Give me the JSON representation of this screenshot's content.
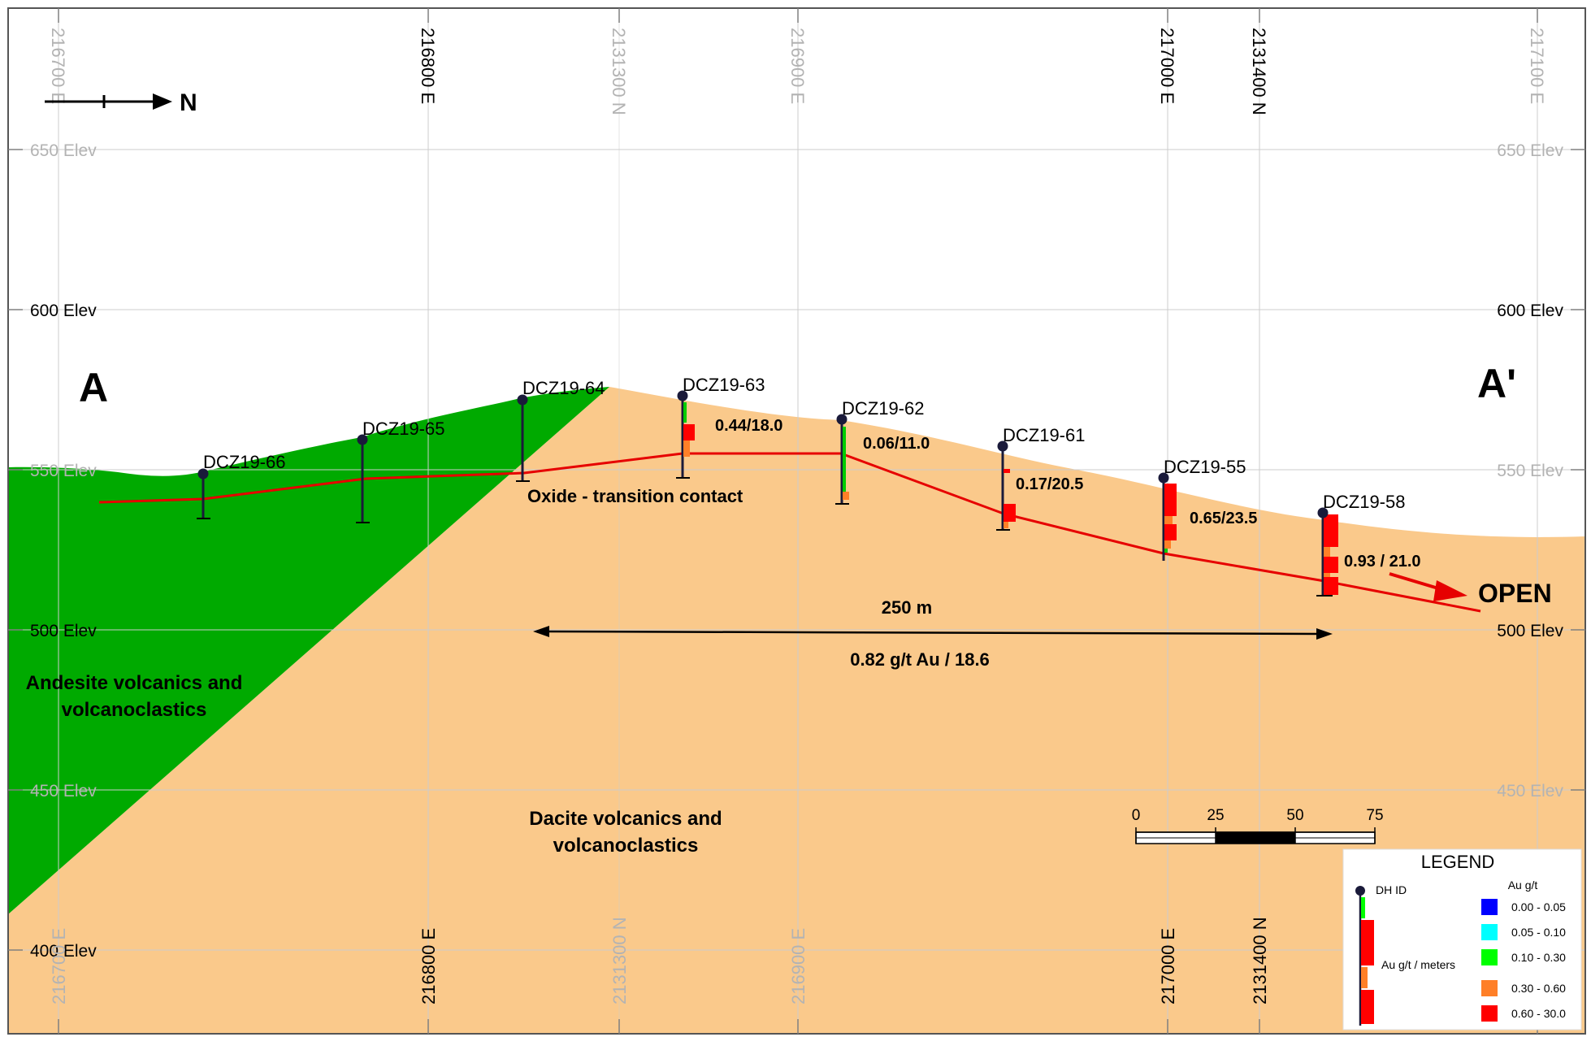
{
  "orientation": {
    "label": "N"
  },
  "section_labels": {
    "start": "A",
    "end": "A'"
  },
  "elevations": {
    "e650": "650 Elev",
    "e600": "600 Elev",
    "e550": "550 Elev",
    "e500": "500 Elev",
    "e450": "450 Elev",
    "e400": "400 Elev"
  },
  "coordinates": {
    "c216700": "216700 E",
    "c216800": "216800 E",
    "c2131300": "2131300 N",
    "c216900": "216900 E",
    "c217000": "217000 E",
    "c2131400": "2131400 N",
    "c217100": "217100 E"
  },
  "drillholes": {
    "h66": "DCZ19-66",
    "h65": "DCZ19-65",
    "h64": "DCZ19-64",
    "h63": "DCZ19-63",
    "h62": "DCZ19-62",
    "h61": "DCZ19-61",
    "h55": "DCZ19-55",
    "h58": "DCZ19-58"
  },
  "intervals": {
    "h63": "0.44/18.0",
    "h62": "0.06/11.0",
    "h61": "0.17/20.5",
    "h55": "0.65/23.5",
    "h58": "0.93 / 21.0"
  },
  "annotations": {
    "oxide_contact": "Oxide - transition contact",
    "width": "250 m",
    "average_grade": "0.82 g/t Au / 18.6",
    "open": "OPEN"
  },
  "units": {
    "andesite_line1": "Andesite volcanics and",
    "andesite_line2": "volcanoclastics",
    "dacite_line1": "Dacite volcanics and",
    "dacite_line2": "volcanoclastics"
  },
  "scale_bar": {
    "t0": "0",
    "t25": "25",
    "t50": "50",
    "t75": "75"
  },
  "legend": {
    "title": "LEGEND",
    "dh_id": "DH ID",
    "au_gt_meters": "Au g/t / meters",
    "au_header": "Au g/t",
    "bins": [
      "0.00 - 0.05",
      "0.05 - 0.10",
      "0.10 - 0.30",
      "0.30 - 0.60",
      "0.60 - 30.0"
    ]
  },
  "colors": {
    "dacite": "#fac98b",
    "andesite": "#00aa00",
    "contact": "#e60000",
    "bin_colors": [
      "#0000ff",
      "#00ffff",
      "#00ff00",
      "#ff7f27",
      "#ff0000"
    ]
  }
}
